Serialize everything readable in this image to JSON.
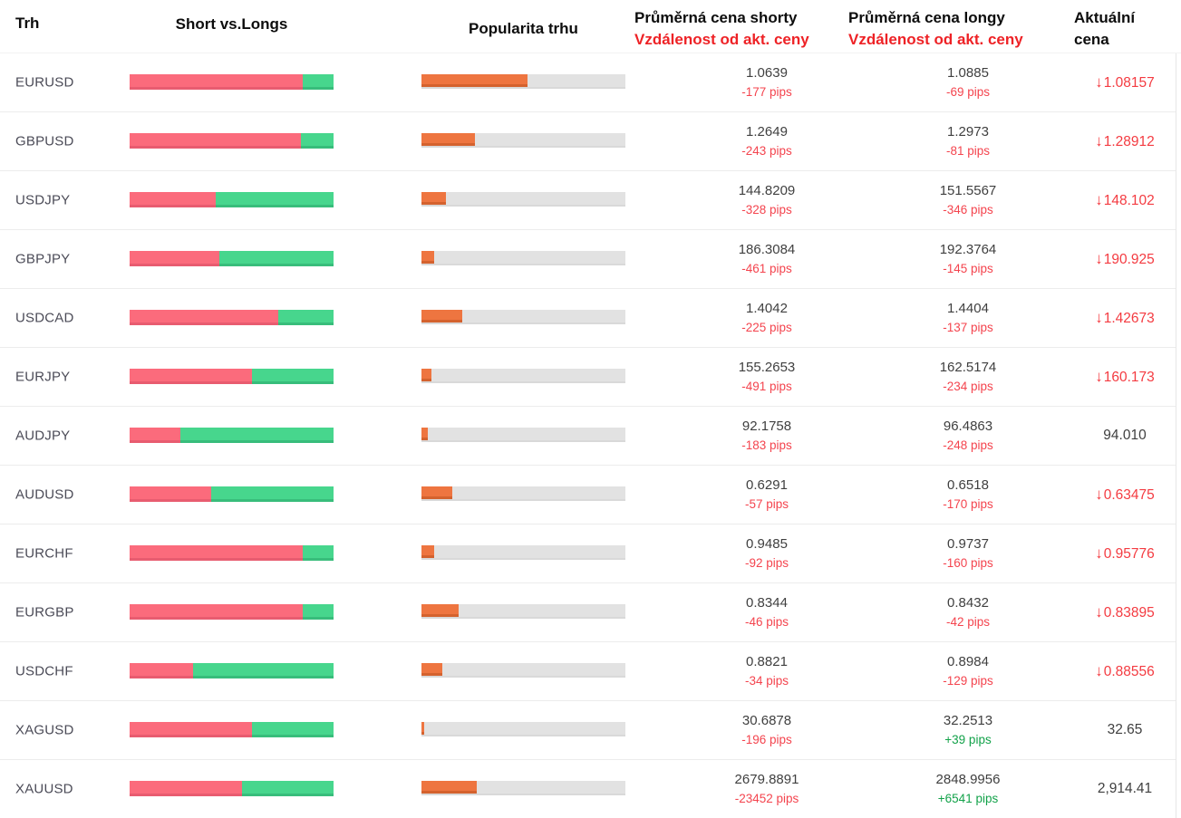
{
  "header": {
    "market": "Trh",
    "short_vs_longs": "Short vs.Longs",
    "popularity": "Popularita trhu",
    "avg_short_line1": "Průměrná cena shorty",
    "avg_short_line2": "Vzdálenost od akt. ceny",
    "avg_long_line1": "Průměrná cena longy",
    "avg_long_line2": "Vzdálenost od akt. ceny",
    "current_line1": "Aktuální",
    "current_line2": "cena"
  },
  "icons": {
    "down_arrow": "↓"
  },
  "colors": {
    "short_bar": "#fb6b7c",
    "long_bar": "#47d68d",
    "popularity_bar": "#ee7540",
    "bar_track": "#e2e2e2",
    "negative_text": "#f4444e",
    "positive_text": "#13a24a",
    "header_red": "#ee2226",
    "price_text": "#3f3f3f",
    "current_down_red": "#f43b41"
  },
  "rows": [
    {
      "market": "EURUSD",
      "short_percent": 85,
      "long_percent": 15,
      "popularity_percent": 52,
      "short_price": "1.0639",
      "short_pips": "-177 pips",
      "short_pips_positive": false,
      "long_price": "1.0885",
      "long_pips": "-69 pips",
      "long_pips_positive": false,
      "current_price": "1.08157",
      "current_direction": "down"
    },
    {
      "market": "GBPUSD",
      "short_percent": 84,
      "long_percent": 16,
      "popularity_percent": 26,
      "short_price": "1.2649",
      "short_pips": "-243 pips",
      "short_pips_positive": false,
      "long_price": "1.2973",
      "long_pips": "-81 pips",
      "long_pips_positive": false,
      "current_price": "1.28912",
      "current_direction": "down"
    },
    {
      "market": "USDJPY",
      "short_percent": 42,
      "long_percent": 58,
      "popularity_percent": 12,
      "short_price": "144.8209",
      "short_pips": "-328 pips",
      "short_pips_positive": false,
      "long_price": "151.5567",
      "long_pips": "-346 pips",
      "long_pips_positive": false,
      "current_price": "148.102",
      "current_direction": "down"
    },
    {
      "market": "GBPJPY",
      "short_percent": 44,
      "long_percent": 56,
      "popularity_percent": 6,
      "short_price": "186.3084",
      "short_pips": "-461 pips",
      "short_pips_positive": false,
      "long_price": "192.3764",
      "long_pips": "-145 pips",
      "long_pips_positive": false,
      "current_price": "190.925",
      "current_direction": "down"
    },
    {
      "market": "USDCAD",
      "short_percent": 73,
      "long_percent": 27,
      "popularity_percent": 20,
      "short_price": "1.4042",
      "short_pips": "-225 pips",
      "short_pips_positive": false,
      "long_price": "1.4404",
      "long_pips": "-137 pips",
      "long_pips_positive": false,
      "current_price": "1.42673",
      "current_direction": "down"
    },
    {
      "market": "EURJPY",
      "short_percent": 60,
      "long_percent": 40,
      "popularity_percent": 5,
      "short_price": "155.2653",
      "short_pips": "-491 pips",
      "short_pips_positive": false,
      "long_price": "162.5174",
      "long_pips": "-234 pips",
      "long_pips_positive": false,
      "current_price": "160.173",
      "current_direction": "down"
    },
    {
      "market": "AUDJPY",
      "short_percent": 25,
      "long_percent": 75,
      "popularity_percent": 3,
      "short_price": "92.1758",
      "short_pips": "-183 pips",
      "short_pips_positive": false,
      "long_price": "96.4863",
      "long_pips": "-248 pips",
      "long_pips_positive": false,
      "current_price": "94.010",
      "current_direction": "none"
    },
    {
      "market": "AUDUSD",
      "short_percent": 40,
      "long_percent": 60,
      "popularity_percent": 15,
      "short_price": "0.6291",
      "short_pips": "-57 pips",
      "short_pips_positive": false,
      "long_price": "0.6518",
      "long_pips": "-170 pips",
      "long_pips_positive": false,
      "current_price": "0.63475",
      "current_direction": "down"
    },
    {
      "market": "EURCHF",
      "short_percent": 85,
      "long_percent": 15,
      "popularity_percent": 6,
      "short_price": "0.9485",
      "short_pips": "-92 pips",
      "short_pips_positive": false,
      "long_price": "0.9737",
      "long_pips": "-160 pips",
      "long_pips_positive": false,
      "current_price": "0.95776",
      "current_direction": "down"
    },
    {
      "market": "EURGBP",
      "short_percent": 85,
      "long_percent": 15,
      "popularity_percent": 18,
      "short_price": "0.8344",
      "short_pips": "-46 pips",
      "short_pips_positive": false,
      "long_price": "0.8432",
      "long_pips": "-42 pips",
      "long_pips_positive": false,
      "current_price": "0.83895",
      "current_direction": "down"
    },
    {
      "market": "USDCHF",
      "short_percent": 31,
      "long_percent": 69,
      "popularity_percent": 10,
      "short_price": "0.8821",
      "short_pips": "-34 pips",
      "short_pips_positive": false,
      "long_price": "0.8984",
      "long_pips": "-129 pips",
      "long_pips_positive": false,
      "current_price": "0.88556",
      "current_direction": "down"
    },
    {
      "market": "XAGUSD",
      "short_percent": 60,
      "long_percent": 40,
      "popularity_percent": 1.5,
      "short_price": "30.6878",
      "short_pips": "-196 pips",
      "short_pips_positive": false,
      "long_price": "32.2513",
      "long_pips": "+39 pips",
      "long_pips_positive": true,
      "current_price": "32.65",
      "current_direction": "none"
    },
    {
      "market": "XAUUSD",
      "short_percent": 55,
      "long_percent": 45,
      "popularity_percent": 27,
      "short_price": "2679.8891",
      "short_pips": "-23452 pips",
      "short_pips_positive": false,
      "long_price": "2848.9956",
      "long_pips": "+6541 pips",
      "long_pips_positive": true,
      "current_price": "2,914.41",
      "current_direction": "none"
    }
  ]
}
